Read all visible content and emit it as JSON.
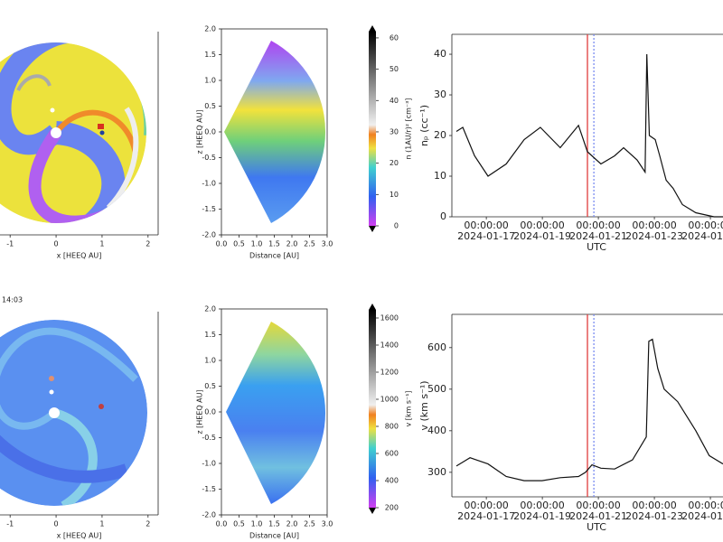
{
  "chart_data": [
    {
      "type": "map",
      "xlabel": "x [HEEQ AU]",
      "xlim": [
        -1.22,
        2.22
      ],
      "xticks": [
        -1,
        0,
        1,
        2
      ]
    },
    {
      "type": "wedge",
      "xlabel": "Distance [AU]",
      "ylabel": "z [HEEQ AU]",
      "xlim": [
        0,
        3
      ],
      "xticks": [
        {
          "value": 0,
          "label": "0.0"
        },
        0.5,
        {
          "value": 1,
          "label": "1.0"
        },
        1.5,
        {
          "value": 2,
          "label": "2.0"
        },
        2.5,
        {
          "value": 3,
          "label": "3.0"
        }
      ],
      "ylim": [
        -2,
        2
      ],
      "yticks": [
        {
          "value": -2,
          "label": "-2.0"
        },
        -1.5,
        {
          "value": -1,
          "label": "-1.0"
        },
        -0.5,
        {
          "value": 0,
          "label": "0.0"
        },
        0.5,
        {
          "value": 1,
          "label": "1.0"
        },
        1.5,
        {
          "value": 2,
          "label": "2.0"
        }
      ]
    },
    {
      "type": "colorbar",
      "label": "n (1AU/r)² [cm⁻³]",
      "ylim": [
        0,
        62
      ],
      "yticks": [
        0,
        10,
        20,
        30,
        40,
        50,
        60
      ]
    },
    {
      "type": "line",
      "ylabel": "nₚ (cc⁻¹)",
      "xlabel": "UTC",
      "xlim": [
        15.77,
        25.45
      ],
      "ylim": [
        0,
        44.9
      ],
      "yticks": [
        0,
        10,
        20,
        30,
        40
      ],
      "xticks": [
        {
          "value": 17,
          "label": "00:00:00",
          "date": "2024-01-17"
        },
        {
          "value": 19,
          "label": "00:00:00",
          "date": "2024-01-19"
        },
        {
          "value": 21,
          "label": "00:00:00",
          "date": "2024-01-21"
        },
        {
          "value": 23,
          "label": "00:00:00",
          "date": "2024-01-23"
        },
        {
          "value": 25,
          "label": "00:00:00",
          "date": "2024-01-25"
        }
      ],
      "series": [
        {
          "color": "#111111",
          "x": [
            15.93,
            16.16,
            16.58,
            17.06,
            17.71,
            18.35,
            18.93,
            19.64,
            20.29,
            20.61,
            21.09,
            21.58,
            21.9,
            22.38,
            22.67,
            22.73,
            22.82,
            23.03,
            23.19,
            23.42,
            23.67,
            24.0,
            24.48,
            25.13,
            25.45
          ],
          "values": [
            21,
            22,
            15,
            10,
            13,
            19,
            22,
            17,
            22.5,
            16,
            13,
            15,
            17,
            14,
            11,
            40,
            20,
            19,
            15,
            9,
            7,
            3,
            1,
            0,
            0
          ]
        }
      ],
      "vlines": [
        {
          "x": 20.61,
          "color": "#e03c3c",
          "style": "solid"
        },
        {
          "x": 20.84,
          "color": "#7a8cf0",
          "style": "dotted"
        }
      ]
    },
    {
      "type": "map",
      "title": "14:03",
      "xlabel": "x [HEEQ AU]",
      "xlim": [
        -1.22,
        2.22
      ],
      "xticks": [
        -1,
        0,
        1,
        2
      ]
    },
    {
      "type": "wedge",
      "xlabel": "Distance [AU]",
      "ylabel": "z [HEEQ AU]",
      "xlim": [
        0,
        3
      ],
      "xticks": [
        {
          "value": 0,
          "label": "0.0"
        },
        0.5,
        {
          "value": 1,
          "label": "1.0"
        },
        1.5,
        {
          "value": 2,
          "label": "2.0"
        },
        2.5,
        {
          "value": 3,
          "label": "3.0"
        }
      ],
      "ylim": [
        -2,
        2
      ],
      "yticks": [
        {
          "value": -2,
          "label": "-2.0"
        },
        -1.5,
        {
          "value": -1,
          "label": "-1.0"
        },
        -0.5,
        {
          "value": 0,
          "label": "0.0"
        },
        0.5,
        {
          "value": 1,
          "label": "1.0"
        },
        1.5,
        {
          "value": 2,
          "label": "2.0"
        }
      ]
    },
    {
      "type": "colorbar",
      "label": "v [km s⁻¹]",
      "ylim": [
        200,
        1660
      ],
      "yticks": [
        200,
        400,
        600,
        800,
        1000,
        1200,
        1400,
        1600
      ]
    },
    {
      "type": "line",
      "ylabel": "v (km s⁻¹)",
      "xlabel": "UTC",
      "xlim": [
        15.77,
        25.45
      ],
      "ylim": [
        241,
        680
      ],
      "yticks": [
        300,
        400,
        500,
        600
      ],
      "xticks": [
        {
          "value": 17,
          "label": "00:00:00",
          "date": "2024-01-17"
        },
        {
          "value": 19,
          "label": "00:00:00",
          "date": "2024-01-19"
        },
        {
          "value": 21,
          "label": "00:00:00",
          "date": "2024-01-21"
        },
        {
          "value": 23,
          "label": "00:00:00",
          "date": "2024-01-23"
        },
        {
          "value": 25,
          "label": "00:00:00",
          "date": "2024-01-25"
        }
      ],
      "series": [
        {
          "color": "#111111",
          "x": [
            15.93,
            16.42,
            17.06,
            17.71,
            18.35,
            18.99,
            19.64,
            20.29,
            20.54,
            20.77,
            21.09,
            21.58,
            22.22,
            22.71,
            22.8,
            22.93,
            23.12,
            23.35,
            23.83,
            24.48,
            24.96,
            25.45
          ],
          "values": [
            315,
            335,
            320,
            290,
            280,
            280,
            287,
            290,
            300,
            318,
            310,
            308,
            330,
            385,
            615,
            620,
            550,
            500,
            470,
            400,
            340,
            320
          ]
        }
      ],
      "vlines": [
        {
          "x": 20.61,
          "color": "#e03c3c",
          "style": "solid"
        },
        {
          "x": 20.84,
          "color": "#7a8cf0",
          "style": "dotted"
        }
      ]
    }
  ]
}
